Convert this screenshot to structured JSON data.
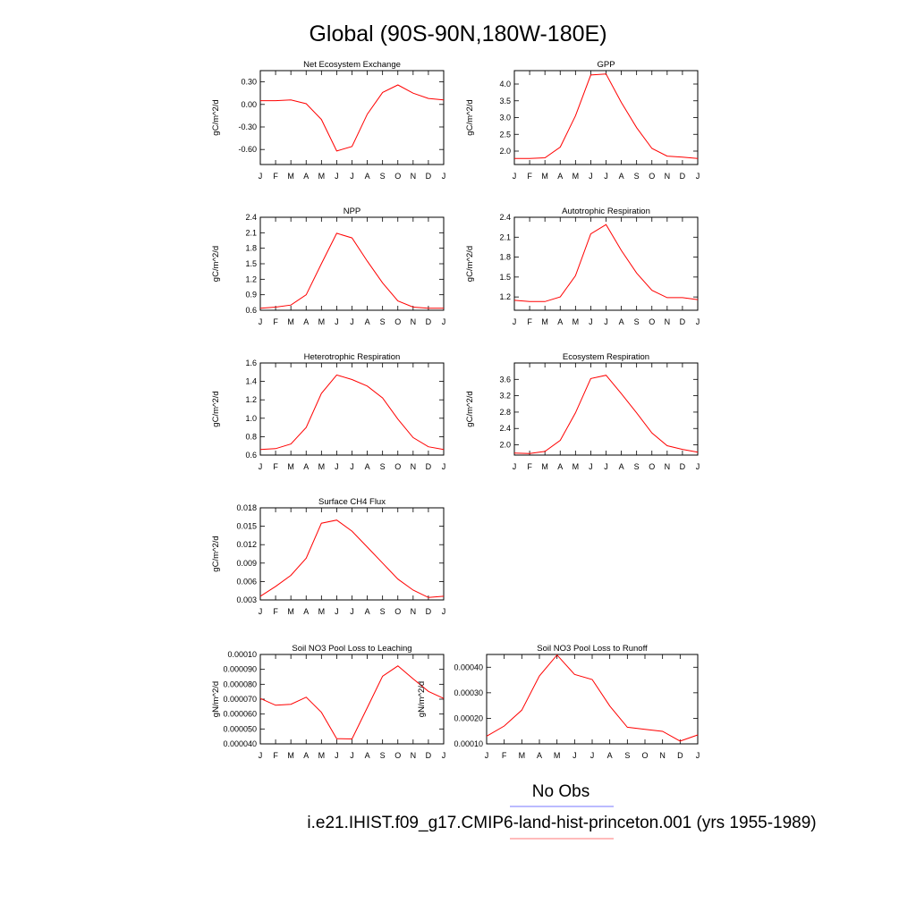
{
  "page": {
    "title": "Global (90S-90N,180W-180E)"
  },
  "legend": {
    "items": [
      {
        "label": "No Obs",
        "color": "#7777ff"
      },
      {
        "label": "i.e21.IHIST.f09_g17.CMIP6-land-hist-princeton.001 (yrs 1955-1989)",
        "color": "#ff7777"
      }
    ]
  },
  "colors": {
    "series": "#ff0000"
  },
  "chart_data": [
    {
      "type": "line",
      "title": "Net Ecosystem Exchange",
      "ylabel": "gC/m^2/d",
      "x_labels": [
        "J",
        "F",
        "M",
        "A",
        "M",
        "J",
        "J",
        "A",
        "S",
        "O",
        "N",
        "D",
        "J"
      ],
      "ylim": [
        -0.8,
        0.45
      ],
      "yticks": [
        0.3,
        0.0,
        -0.3,
        -0.6
      ],
      "ytick_labels": [
        "0.30",
        "0.00",
        "-0.30",
        "-0.60"
      ],
      "values": [
        0.05,
        0.05,
        0.06,
        0.01,
        -0.2,
        -0.62,
        -0.56,
        -0.13,
        0.16,
        0.26,
        0.15,
        0.08,
        0.06
      ]
    },
    {
      "type": "line",
      "title": "GPP",
      "ylabel": "gC/m^2/d",
      "x_labels": [
        "J",
        "F",
        "M",
        "A",
        "M",
        "J",
        "J",
        "A",
        "S",
        "O",
        "N",
        "D",
        "J"
      ],
      "ylim": [
        1.6,
        4.4
      ],
      "yticks": [
        2.0,
        2.5,
        3.0,
        3.5,
        4.0
      ],
      "ytick_labels": [
        "2.0",
        "2.5",
        "3.0",
        "3.5",
        "4.0"
      ],
      "values": [
        1.78,
        1.78,
        1.8,
        2.12,
        3.05,
        4.27,
        4.3,
        3.45,
        2.7,
        2.08,
        1.85,
        1.82,
        1.78
      ]
    },
    {
      "type": "line",
      "title": "NPP",
      "ylabel": "gC/m^2/d",
      "x_labels": [
        "J",
        "F",
        "M",
        "A",
        "M",
        "J",
        "J",
        "A",
        "S",
        "O",
        "N",
        "D",
        "J"
      ],
      "ylim": [
        0.6,
        2.4
      ],
      "yticks": [
        0.6,
        0.9,
        1.2,
        1.5,
        1.8,
        2.1,
        2.4
      ],
      "ytick_labels": [
        "0.6",
        "0.9",
        "1.2",
        "1.5",
        "1.8",
        "2.1",
        "2.4"
      ],
      "values": [
        0.64,
        0.66,
        0.7,
        0.9,
        1.5,
        2.09,
        2.0,
        1.55,
        1.13,
        0.78,
        0.66,
        0.64,
        0.64
      ]
    },
    {
      "type": "line",
      "title": "Autotrophic Respiration",
      "ylabel": "gC/m^2/d",
      "x_labels": [
        "J",
        "F",
        "M",
        "A",
        "M",
        "J",
        "J",
        "A",
        "S",
        "O",
        "N",
        "D",
        "J"
      ],
      "ylim": [
        1.0,
        2.4
      ],
      "yticks": [
        1.2,
        1.5,
        1.8,
        2.1,
        2.4
      ],
      "ytick_labels": [
        "1.2",
        "1.5",
        "1.8",
        "2.1",
        "2.4"
      ],
      "values": [
        1.15,
        1.13,
        1.13,
        1.2,
        1.52,
        2.15,
        2.29,
        1.9,
        1.56,
        1.3,
        1.19,
        1.19,
        1.16
      ]
    },
    {
      "type": "line",
      "title": "Heterotrophic Respiration",
      "ylabel": "gC/m^2/d",
      "x_labels": [
        "J",
        "F",
        "M",
        "A",
        "M",
        "J",
        "J",
        "A",
        "S",
        "O",
        "N",
        "D",
        "J"
      ],
      "ylim": [
        0.6,
        1.6
      ],
      "yticks": [
        0.6,
        0.8,
        1.0,
        1.2,
        1.4,
        1.6
      ],
      "ytick_labels": [
        "0.6",
        "0.8",
        "1.0",
        "1.2",
        "1.4",
        "1.6"
      ],
      "values": [
        0.66,
        0.67,
        0.72,
        0.9,
        1.27,
        1.47,
        1.42,
        1.35,
        1.22,
        0.99,
        0.79,
        0.69,
        0.66
      ]
    },
    {
      "type": "line",
      "title": "Ecosystem Respiration",
      "ylabel": "gC/m^2/d",
      "x_labels": [
        "J",
        "F",
        "M",
        "A",
        "M",
        "J",
        "J",
        "A",
        "S",
        "O",
        "N",
        "D",
        "J"
      ],
      "ylim": [
        1.75,
        4.0
      ],
      "yticks": [
        2.0,
        2.4,
        2.8,
        3.2,
        3.6
      ],
      "ytick_labels": [
        "2.0",
        "2.4",
        "2.8",
        "3.2",
        "3.6"
      ],
      "values": [
        1.8,
        1.79,
        1.84,
        2.11,
        2.78,
        3.62,
        3.7,
        3.25,
        2.78,
        2.29,
        1.98,
        1.89,
        1.82
      ]
    },
    {
      "type": "line",
      "title": "Surface CH4 Flux",
      "ylabel": "gC/m^2/d",
      "x_labels": [
        "J",
        "F",
        "M",
        "A",
        "M",
        "J",
        "J",
        "A",
        "S",
        "O",
        "N",
        "D",
        "J"
      ],
      "ylim": [
        0.003,
        0.018
      ],
      "yticks": [
        0.003,
        0.006,
        0.009,
        0.012,
        0.015,
        0.018
      ],
      "ytick_labels": [
        "0.003",
        "0.006",
        "0.009",
        "0.012",
        "0.015",
        "0.018"
      ],
      "values": [
        0.0036,
        0.0052,
        0.007,
        0.0098,
        0.0155,
        0.016,
        0.0142,
        0.0116,
        0.009,
        0.0064,
        0.0046,
        0.0034,
        0.0036
      ]
    },
    {
      "type": "line",
      "title": "Soil NO3 Pool Loss to Leaching",
      "ylabel": "gN/m^2/d",
      "x_labels": [
        "J",
        "F",
        "M",
        "A",
        "M",
        "J",
        "J",
        "A",
        "S",
        "O",
        "N",
        "D",
        "J"
      ],
      "ylim": [
        4e-05,
        0.0001
      ],
      "yticks": [
        4e-05,
        5e-05,
        6e-05,
        7e-05,
        8e-05,
        9e-05,
        0.0001
      ],
      "ytick_labels": [
        "0.000040",
        "0.000050",
        "0.000060",
        "0.000070",
        "0.000080",
        "0.000090",
        "0.00010"
      ],
      "values": [
        7.05e-05,
        6.59e-05,
        6.66e-05,
        7.13e-05,
        6.12e-05,
        4.35e-05,
        4.33e-05,
        6.43e-05,
        8.54e-05,
        9.23e-05,
        8.37e-05,
        7.52e-05,
        7.05e-05
      ]
    },
    {
      "type": "line",
      "title": "Soil NO3 Pool Loss to Runoff",
      "ylabel": "gN/m^2/d",
      "x_labels": [
        "J",
        "F",
        "M",
        "A",
        "M",
        "J",
        "J",
        "A",
        "S",
        "O",
        "N",
        "D",
        "J"
      ],
      "ylim": [
        0.0001,
        0.00045
      ],
      "yticks": [
        0.0001,
        0.0002,
        0.0003,
        0.0004
      ],
      "ytick_labels": [
        "0.00010",
        "0.00020",
        "0.00030",
        "0.00040"
      ],
      "values": [
        0.00013,
        0.00017,
        0.000232,
        0.000366,
        0.000448,
        0.000372,
        0.000352,
        0.000248,
        0.000165,
        0.000157,
        0.000149,
        0.000111,
        0.000135
      ]
    }
  ]
}
